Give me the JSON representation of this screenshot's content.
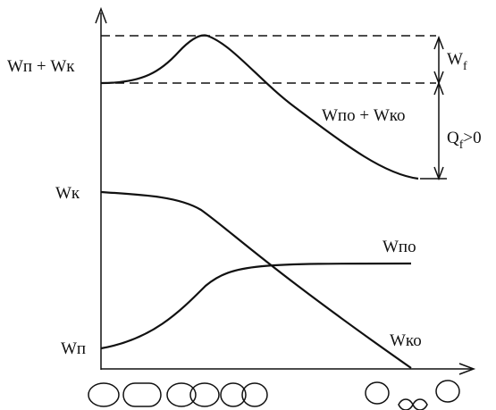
{
  "labels": {
    "top_sum": "Wп + Wк",
    "wf": {
      "main": "W",
      "sub": "f"
    },
    "bottom_sum": "Wпо + Wко",
    "qf": {
      "main": "Q",
      "sub": "f",
      "rest": ">0"
    },
    "wk": "Wк",
    "wpo": "Wпо",
    "wp": "Wп",
    "wko": "Wко"
  }
}
